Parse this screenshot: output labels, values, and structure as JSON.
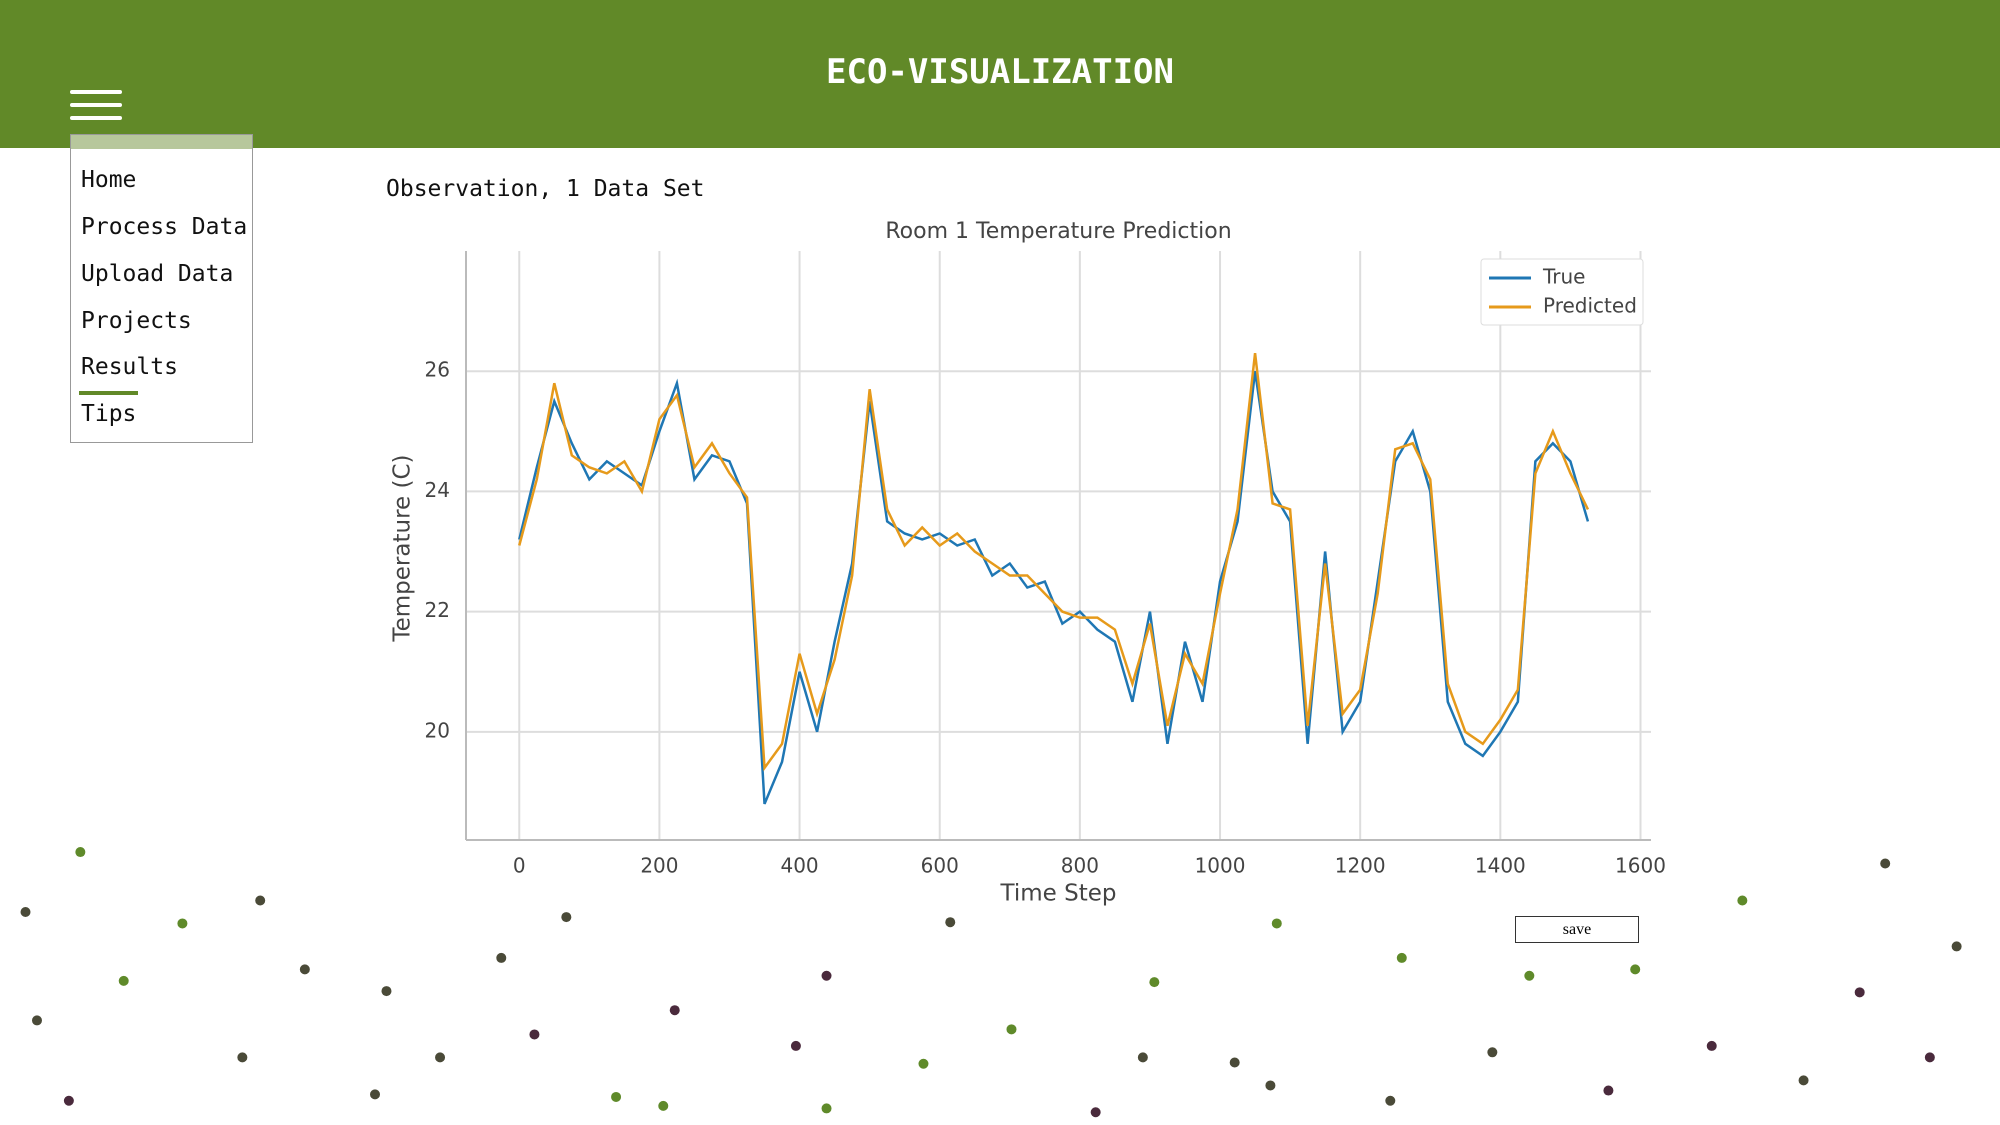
{
  "header": {
    "title": "ECO-VISUALIZATION"
  },
  "nav": {
    "items": [
      "Home",
      "Process Data",
      "Upload Data",
      "Projects",
      "Results",
      "Tips"
    ]
  },
  "heading": "Observation, 1 Data Set",
  "save_button": "save",
  "chart_data": {
    "type": "line",
    "title": "Room 1 Temperature Prediction",
    "x_label": "Time Step",
    "y_label": "Temperature (C)",
    "x": [
      0,
      25,
      50,
      75,
      100,
      125,
      150,
      175,
      200,
      225,
      250,
      275,
      300,
      325,
      350,
      375,
      400,
      425,
      450,
      475,
      500,
      525,
      550,
      575,
      600,
      625,
      650,
      675,
      700,
      725,
      750,
      775,
      800,
      825,
      850,
      875,
      900,
      925,
      950,
      975,
      1000,
      1025,
      1050,
      1075,
      1100,
      1125,
      1150,
      1175,
      1200,
      1225,
      1250,
      1275,
      1300,
      1325,
      1350,
      1375,
      1400,
      1425,
      1450,
      1475,
      1500,
      1525
    ],
    "series": [
      {
        "name": "True",
        "color": "#1f77b4",
        "values": [
          23.2,
          24.4,
          25.5,
          24.8,
          24.2,
          24.5,
          24.3,
          24.1,
          25.0,
          25.8,
          24.2,
          24.6,
          24.5,
          23.8,
          18.8,
          19.5,
          21.0,
          20.0,
          21.5,
          22.8,
          25.5,
          23.5,
          23.3,
          23.2,
          23.3,
          23.1,
          23.2,
          22.6,
          22.8,
          22.4,
          22.5,
          21.8,
          22.0,
          21.7,
          21.5,
          20.5,
          22.0,
          19.8,
          21.5,
          20.5,
          22.5,
          23.5,
          26.0,
          24.0,
          23.5,
          19.8,
          23.0,
          20.0,
          20.5,
          22.5,
          24.5,
          25.0,
          24.0,
          20.5,
          19.8,
          19.6,
          20.0,
          20.5,
          24.5,
          24.8,
          24.5,
          23.5
        ]
      },
      {
        "name": "Predicted",
        "color": "#e69a1b",
        "values": [
          23.1,
          24.2,
          25.8,
          24.6,
          24.4,
          24.3,
          24.5,
          24.0,
          25.2,
          25.6,
          24.4,
          24.8,
          24.3,
          23.9,
          19.4,
          19.8,
          21.3,
          20.3,
          21.2,
          22.6,
          25.7,
          23.7,
          23.1,
          23.4,
          23.1,
          23.3,
          23.0,
          22.8,
          22.6,
          22.6,
          22.3,
          22.0,
          21.9,
          21.9,
          21.7,
          20.8,
          21.8,
          20.1,
          21.3,
          20.8,
          22.3,
          23.7,
          26.3,
          23.8,
          23.7,
          20.1,
          22.8,
          20.3,
          20.7,
          22.3,
          24.7,
          24.8,
          24.2,
          20.8,
          20.0,
          19.8,
          20.2,
          20.7,
          24.3,
          25.0,
          24.3,
          23.7
        ]
      }
    ],
    "xlim": [
      -76,
      1615
    ],
    "ylim": [
      18.2,
      28.0
    ],
    "xticks": [
      0,
      200,
      400,
      600,
      800,
      1000,
      1200,
      1400,
      1600
    ],
    "yticks": [
      20,
      22,
      24,
      26
    ],
    "grid": true,
    "legend": "upper right"
  }
}
